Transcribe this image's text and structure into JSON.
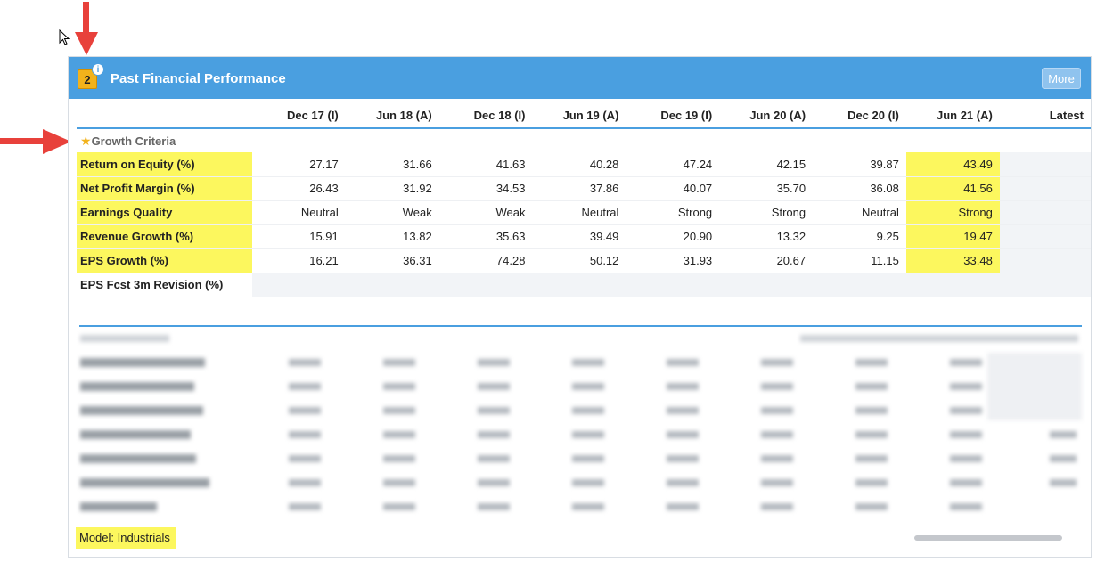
{
  "panel": {
    "badge_number": "2",
    "info_marker": "i",
    "title": "Past Financial Performance",
    "more_label": "More",
    "header_color": "#4a9fe0"
  },
  "table": {
    "columns": [
      "Dec 17 (I)",
      "Jun 18 (A)",
      "Dec 18 (I)",
      "Jun 19 (A)",
      "Dec 19 (I)",
      "Jun 20 (A)",
      "Dec 20 (I)",
      "Jun 21 (A)",
      "Latest"
    ],
    "section_title": "Growth Criteria",
    "rows": [
      {
        "label": "Return on Equity (%)",
        "values": [
          "27.17",
          "31.66",
          "41.63",
          "40.28",
          "47.24",
          "42.15",
          "39.87",
          "43.49",
          ""
        ]
      },
      {
        "label": "Net Profit Margin (%)",
        "values": [
          "26.43",
          "31.92",
          "34.53",
          "37.86",
          "40.07",
          "35.70",
          "36.08",
          "41.56",
          ""
        ]
      },
      {
        "label": "Earnings Quality",
        "values": [
          "Neutral",
          "Weak",
          "Weak",
          "Neutral",
          "Strong",
          "Strong",
          "Neutral",
          "Strong",
          ""
        ]
      },
      {
        "label": "Revenue Growth (%)",
        "values": [
          "15.91",
          "13.82",
          "35.63",
          "39.49",
          "20.90",
          "13.32",
          "9.25",
          "19.47",
          ""
        ]
      },
      {
        "label": "EPS Growth (%)",
        "values": [
          "16.21",
          "36.31",
          "74.28",
          "50.12",
          "31.93",
          "20.67",
          "11.15",
          "33.48",
          ""
        ]
      },
      {
        "label": "EPS Fcst 3m Revision (%)",
        "values": [
          "",
          "",
          "",
          "",
          "",
          "",
          "",
          "",
          ""
        ]
      }
    ]
  },
  "highlight_color": "#fcf75e",
  "footer": {
    "model_label": "Model: Industrials"
  }
}
